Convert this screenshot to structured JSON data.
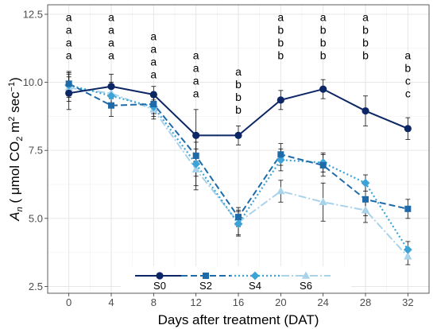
{
  "chart_data": {
    "type": "line",
    "x": [
      0,
      4,
      8,
      12,
      16,
      20,
      24,
      28,
      32
    ],
    "xlabel": "Days after treatment (DAT)",
    "ylabel": {
      "symbol": "A",
      "subscript": "n",
      "unit_parts": [
        "( μmol CO",
        "2",
        " m",
        "2",
        " sec",
        "−1",
        ")"
      ]
    },
    "xlim": [
      -2,
      34
    ],
    "ylim": [
      2.25,
      12.85
    ],
    "yticks": [
      2.5,
      5.0,
      7.5,
      10.0,
      12.5
    ],
    "ytick_labels": [
      "2.5",
      "5.0",
      "7.5",
      "10.0",
      "12.5"
    ],
    "xtick_labels": [
      "0",
      "4",
      "8",
      "12",
      "16",
      "20",
      "24",
      "28",
      "32"
    ],
    "grid": true,
    "legend_position": "bottom",
    "series": [
      {
        "name": "S0",
        "color": "#0d2766",
        "marker": "circle",
        "dash": "",
        "width": 2,
        "values": [
          9.6,
          9.85,
          9.55,
          8.05,
          8.05,
          9.35,
          9.75,
          8.95,
          8.3
        ],
        "errors": [
          0.6,
          0.45,
          0.3,
          0.95,
          0.35,
          0.35,
          0.35,
          0.55,
          0.4
        ]
      },
      {
        "name": "S2",
        "color": "#1f6aa8",
        "marker": "square",
        "dash": "8,4",
        "width": 2,
        "values": [
          9.95,
          9.15,
          9.2,
          7.3,
          5.05,
          7.35,
          6.95,
          5.7,
          5.35
        ],
        "errors": [
          0.45,
          0.4,
          0.35,
          0.75,
          0.35,
          0.4,
          0.4,
          0.6,
          0.35
        ]
      },
      {
        "name": "S4",
        "color": "#3da3d6",
        "marker": "diamond",
        "dash": "2,3",
        "width": 2.2,
        "values": [
          9.9,
          9.5,
          9.1,
          7.0,
          4.8,
          7.15,
          7.05,
          6.3,
          3.85
        ],
        "errors": [
          0.45,
          0.35,
          0.35,
          0.8,
          0.45,
          0.4,
          0.35,
          0.3,
          0.3
        ]
      },
      {
        "name": "S6",
        "color": "#a9d3ea",
        "marker": "triangle",
        "dash": "10,3,2,3",
        "width": 2,
        "values": [
          9.8,
          9.6,
          9.0,
          6.8,
          4.85,
          6.0,
          5.6,
          5.3,
          3.6
        ],
        "errors": [
          0.5,
          0.4,
          0.35,
          0.75,
          0.45,
          0.4,
          0.7,
          0.45,
          0.3
        ]
      }
    ],
    "letters": [
      [
        "a",
        "a",
        "a",
        "a"
      ],
      [
        "a",
        "a",
        "a",
        "a"
      ],
      [
        "a",
        "a",
        "a",
        "a"
      ],
      [
        "a",
        "a",
        "a",
        "a"
      ],
      [
        "a",
        "b",
        "b",
        "b"
      ],
      [
        "a",
        "b",
        "b",
        "b"
      ],
      [
        "a",
        "b",
        "b",
        "b"
      ],
      [
        "a",
        "b",
        "b",
        "b"
      ],
      [
        "a",
        "b",
        "c",
        "c"
      ]
    ],
    "letter_top_values": [
      12.25,
      12.25,
      11.55,
      10.85,
      10.25,
      12.25,
      12.25,
      12.25,
      10.85
    ]
  }
}
